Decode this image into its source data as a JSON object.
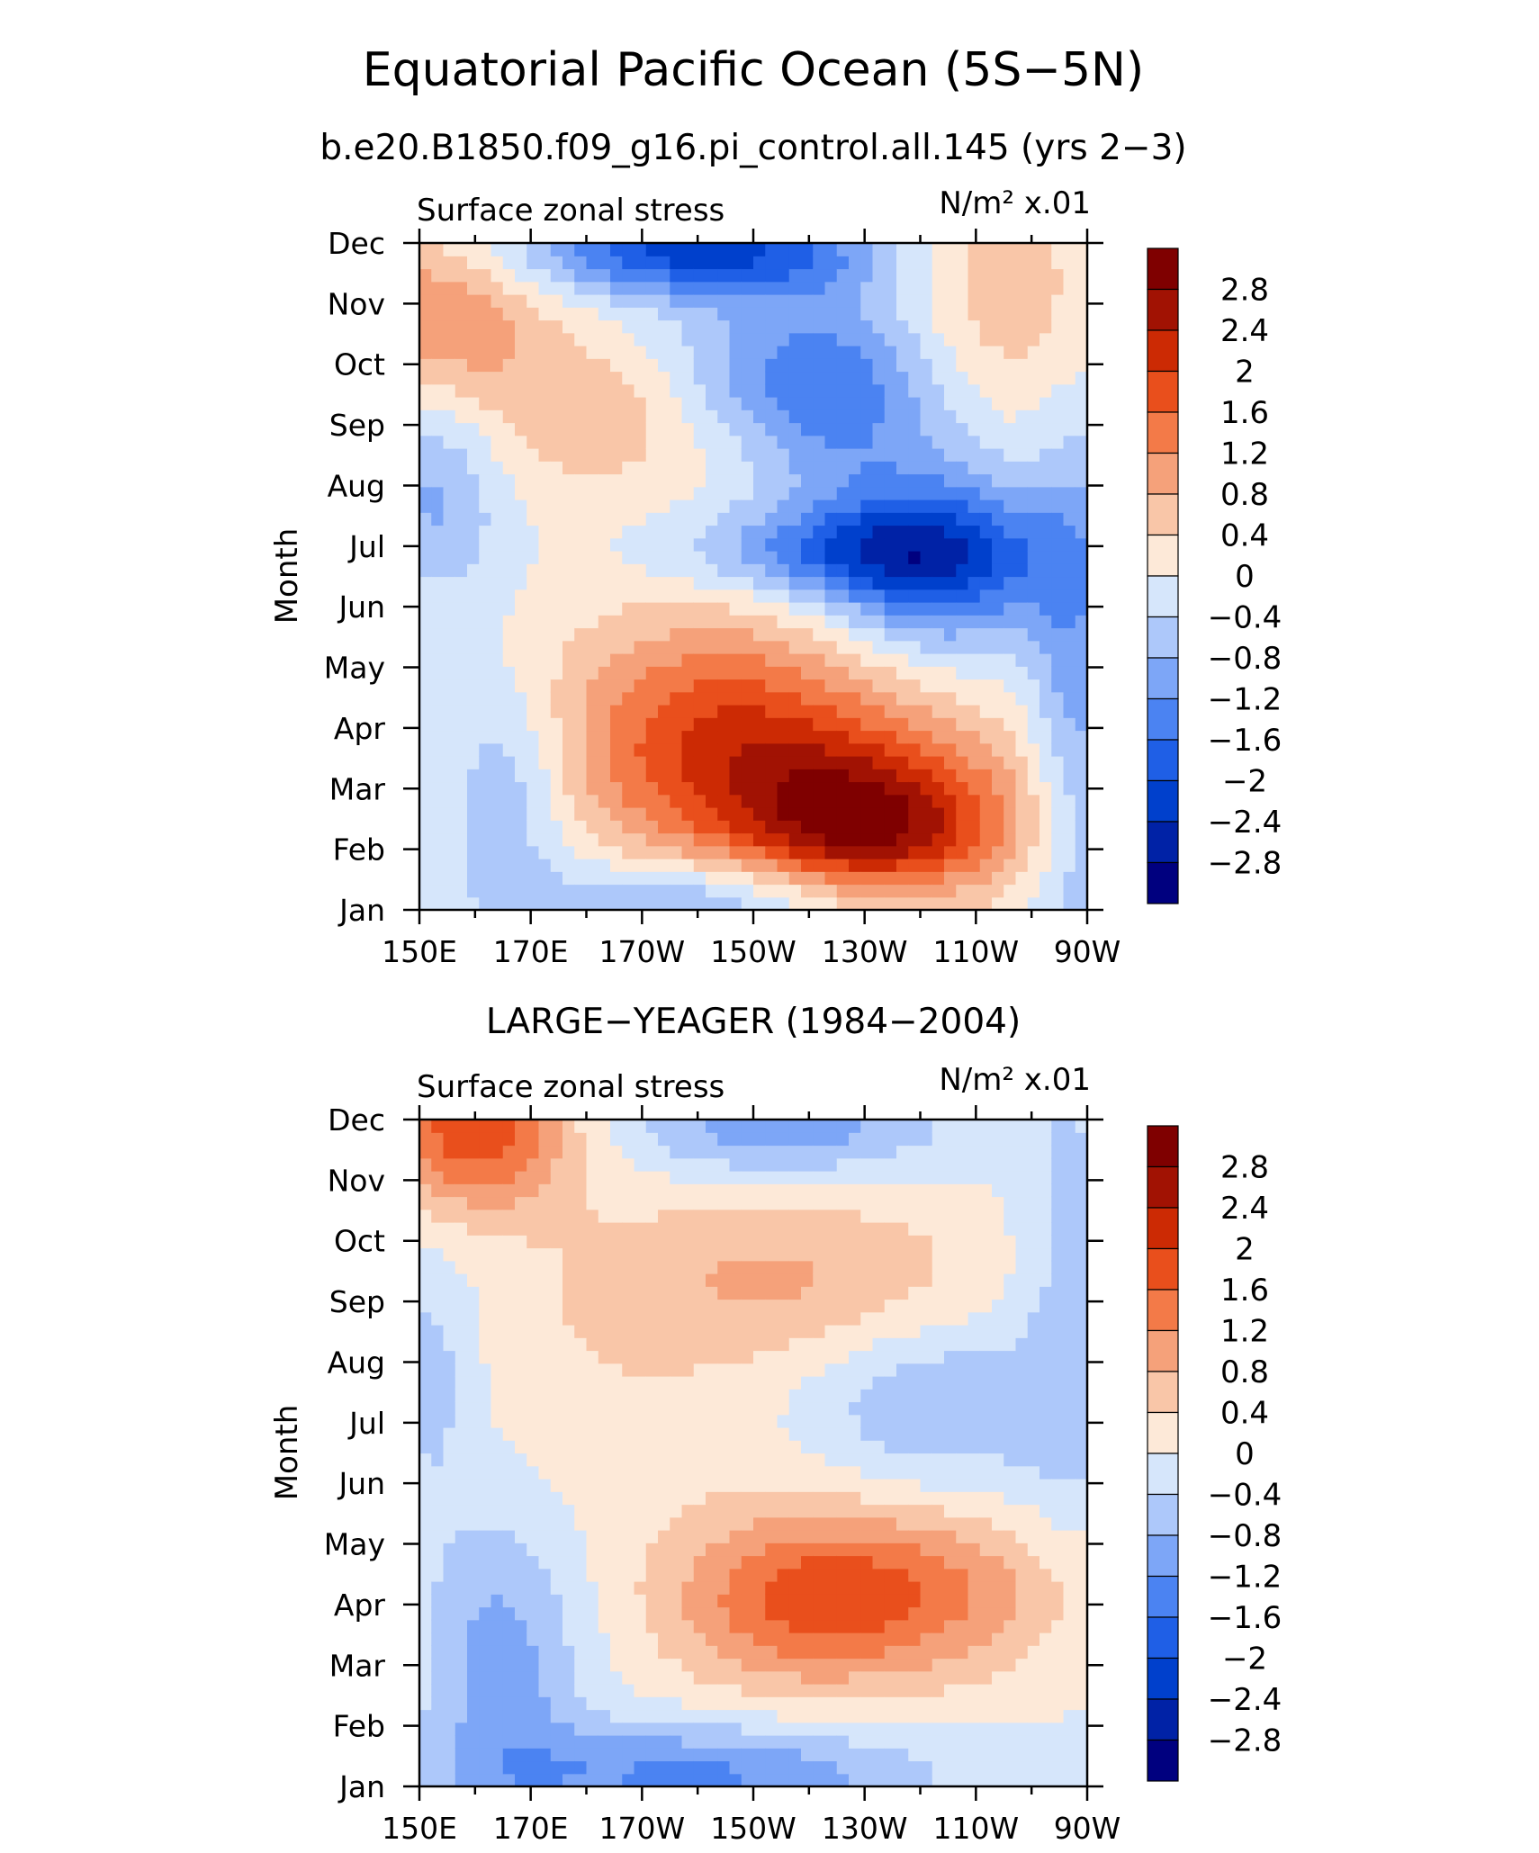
{
  "title": "Equatorial Pacific Ocean (5S−5N)",
  "subtitle": "b.e20.B1850.f09_g16.pi_control.all.145 (yrs 2−3)",
  "colors": [
    "#00007f",
    "#0022a6",
    "#0040cc",
    "#1f5fe6",
    "#4b83f2",
    "#7da6f7",
    "#adc8fa",
    "#d6e6fb",
    "#fde9d8",
    "#f9c6a8",
    "#f5a17a",
    "#f37a48",
    "#e94f1c",
    "#cc2a04",
    "#a11203",
    "#7f0000"
  ],
  "chart_data": [
    {
      "type": "heatmap",
      "panel_title": "",
      "left_label": "Surface zonal stress",
      "right_label": "N/m² x.01",
      "ylabel": "Month",
      "x_tick_labels": [
        "150E",
        "170E",
        "170W",
        "150W",
        "130W",
        "110W",
        "90W"
      ],
      "y_tick_labels": [
        "Jan",
        "Feb",
        "Mar",
        "Apr",
        "May",
        "Jun",
        "Jul",
        "Aug",
        "Sep",
        "Oct",
        "Nov",
        "Dec"
      ],
      "colorbar_labels": [
        "2.8",
        "2.4",
        "2",
        "1.6",
        "1.2",
        "0.8",
        "0.4",
        "0",
        "−0.4",
        "−0.8",
        "−1.2",
        "−1.6",
        "−2",
        "−2.4",
        "−2.8"
      ],
      "contour_levels": [
        -2.8,
        -2.4,
        -2,
        -1.6,
        -1.2,
        -0.8,
        -0.4,
        0,
        0.4,
        0.8,
        1.2,
        1.6,
        2,
        2.4,
        2.8
      ],
      "x_lon_range": [
        150,
        270
      ],
      "month_range": [
        1,
        12
      ],
      "features": [
        {
          "lon": 153,
          "mon": 10.8,
          "amp": 1.2,
          "slon": 14,
          "smon": 1.0
        },
        {
          "lon": 182,
          "mon": 9.2,
          "amp": 0.7,
          "slon": 16,
          "smon": 0.9
        },
        {
          "lon": 205,
          "mon": 8.6,
          "amp": 0.3,
          "slon": 14,
          "smon": 0.7
        },
        {
          "lon": 200,
          "mon": 11.9,
          "amp": -2.1,
          "slon": 22,
          "smon": 0.55
        },
        {
          "lon": 222,
          "mon": 9.6,
          "amp": -1.6,
          "slon": 18,
          "smon": 1.2
        },
        {
          "lon": 243,
          "mon": 6.8,
          "amp": -2.2,
          "slon": 15,
          "smon": 1.0
        },
        {
          "lon": 222,
          "mon": 6.9,
          "amp": -1.1,
          "slon": 18,
          "smon": 0.5
        },
        {
          "lon": 153,
          "mon": 7.9,
          "amp": -0.9,
          "slon": 8,
          "smon": 1.2
        },
        {
          "lon": 232,
          "mon": 2.3,
          "amp": 2.2,
          "slon": 17,
          "smon": 0.9
        },
        {
          "lon": 205,
          "mon": 3.9,
          "amp": 1.8,
          "slon": 22,
          "smon": 1.4
        },
        {
          "lon": 228,
          "mon": 3.0,
          "amp": 0.6,
          "slon": 28,
          "smon": 1.1
        },
        {
          "lon": 166,
          "mon": 3.0,
          "amp": -0.9,
          "slon": 8,
          "smon": 1.3
        },
        {
          "lon": 205,
          "mon": 1.2,
          "amp": -1.1,
          "slon": 24,
          "smon": 0.5
        },
        {
          "lon": 254,
          "mon": 11.0,
          "amp": 0.8,
          "slon": 14,
          "smon": 1.6
        },
        {
          "lon": 268,
          "mon": 4.5,
          "amp": -1.0,
          "slon": 6,
          "smon": 3.5
        }
      ]
    },
    {
      "type": "heatmap",
      "panel_title": "LARGE−YEAGER (1984−2004)",
      "left_label": "Surface zonal stress",
      "right_label": "N/m² x.01",
      "ylabel": "Month",
      "x_tick_labels": [
        "150E",
        "170E",
        "170W",
        "150W",
        "130W",
        "110W",
        "90W"
      ],
      "y_tick_labels": [
        "Jan",
        "Feb",
        "Mar",
        "Apr",
        "May",
        "Jun",
        "Jul",
        "Aug",
        "Sep",
        "Oct",
        "Nov",
        "Dec"
      ],
      "colorbar_labels": [
        "2.8",
        "2.4",
        "2",
        "1.6",
        "1.2",
        "0.8",
        "0.4",
        "0",
        "−0.4",
        "−0.8",
        "−1.2",
        "−1.6",
        "−2",
        "−2.4",
        "−2.8"
      ],
      "contour_levels": [
        -2.8,
        -2.4,
        -2,
        -1.6,
        -1.2,
        -0.8,
        -0.4,
        0,
        0.4,
        0.8,
        1.2,
        1.6,
        2,
        2.4,
        2.8
      ],
      "x_lon_range": [
        150,
        270
      ],
      "month_range": [
        1,
        12
      ],
      "features": [
        {
          "lon": 160,
          "mon": 11.8,
          "amp": 1.9,
          "slon": 12,
          "smon": 0.9
        },
        {
          "lon": 218,
          "mon": 9.4,
          "amp": 0.8,
          "slon": 24,
          "smon": 1.0
        },
        {
          "lon": 235,
          "mon": 4.2,
          "amp": 1.4,
          "slon": 22,
          "smon": 1.0
        },
        {
          "lon": 215,
          "mon": 4.0,
          "amp": 0.8,
          "slon": 16,
          "smon": 1.1
        },
        {
          "lon": 215,
          "mon": 11.9,
          "amp": -1.1,
          "slon": 20,
          "smon": 0.6
        },
        {
          "lon": 165,
          "mon": 3.0,
          "amp": -1.0,
          "slon": 10,
          "smon": 1.8
        },
        {
          "lon": 200,
          "mon": 1.2,
          "amp": -1.3,
          "slon": 28,
          "smon": 0.6
        },
        {
          "lon": 243,
          "mon": 7.3,
          "amp": -0.8,
          "slon": 16,
          "smon": 1.0
        },
        {
          "lon": 152,
          "mon": 7.8,
          "amp": -0.6,
          "slon": 6,
          "smon": 1.5
        },
        {
          "lon": 267,
          "mon": 9.0,
          "amp": -0.6,
          "slon": 7,
          "smon": 3.0
        },
        {
          "lon": 185,
          "mon": 8.0,
          "amp": 0.3,
          "slon": 20,
          "smon": 2.0
        }
      ]
    }
  ]
}
